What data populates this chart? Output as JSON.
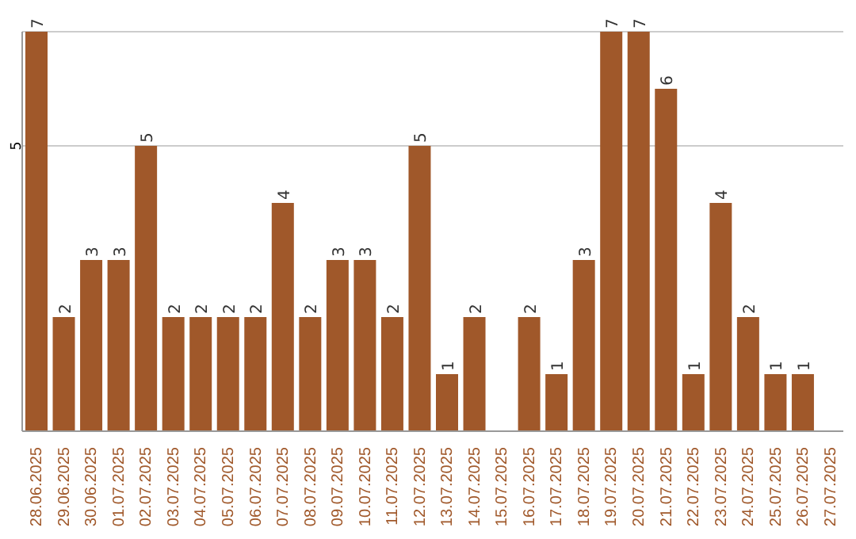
{
  "chart_data": {
    "type": "bar",
    "categories": [
      "28.06.2025",
      "29.06.2025",
      "30.06.2025",
      "01.07.2025",
      "02.07.2025",
      "03.07.2025",
      "04.07.2025",
      "05.07.2025",
      "06.07.2025",
      "07.07.2025",
      "08.07.2025",
      "09.07.2025",
      "10.07.2025",
      "11.07.2025",
      "12.07.2025",
      "13.07.2025",
      "14.07.2025",
      "15.07.2025",
      "16.07.2025",
      "17.07.2025",
      "18.07.2025",
      "19.07.2025",
      "20.07.2025",
      "21.07.2025",
      "22.07.2025",
      "23.07.2025",
      "24.07.2025",
      "25.07.2025",
      "26.07.2025",
      "27.07.2025"
    ],
    "values": [
      7,
      2,
      3,
      3,
      5,
      2,
      2,
      2,
      2,
      4,
      2,
      3,
      3,
      2,
      5,
      1,
      2,
      null,
      2,
      1,
      3,
      7,
      7,
      6,
      1,
      4,
      2,
      1,
      1,
      null
    ],
    "color": "#a0582a",
    "ylim": [
      0,
      7
    ],
    "yticks": [
      5
    ],
    "grid": "y",
    "data_labels": true
  }
}
